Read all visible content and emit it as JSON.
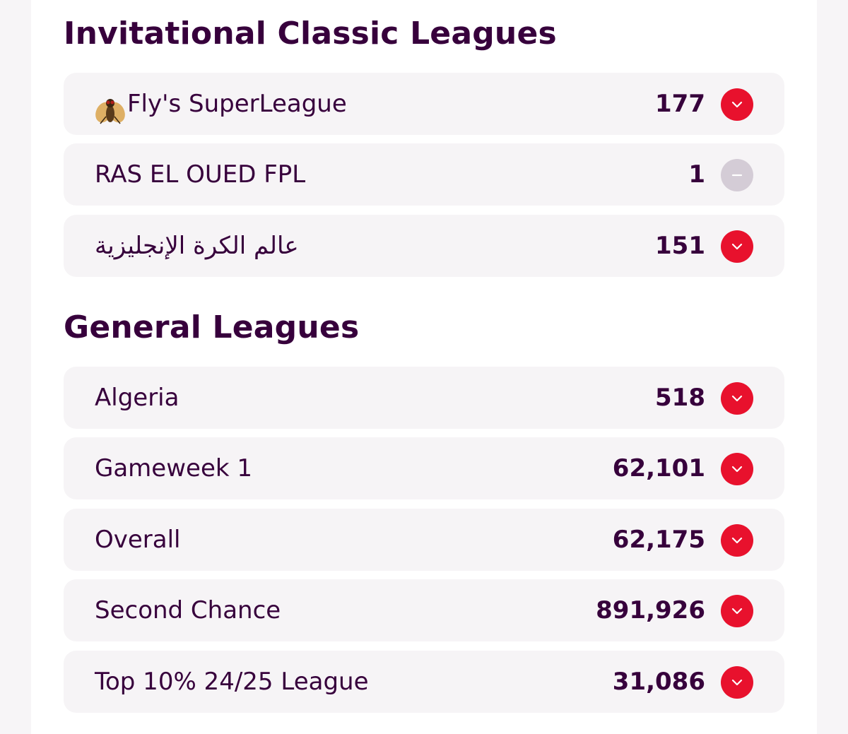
{
  "invitational": {
    "title": "Invitational Classic Leagues",
    "leagues": [
      {
        "name": "Fly's SuperLeague",
        "rank": "177",
        "movement": "down",
        "icon": "fly-icon"
      },
      {
        "name": "RAS EL OUED FPL",
        "rank": "1",
        "movement": "same"
      },
      {
        "name": "عالم الكرة الإنجليزية",
        "rank": "151",
        "movement": "down"
      }
    ]
  },
  "general": {
    "title": "General Leagues",
    "leagues": [
      {
        "name": "Algeria",
        "rank": "518",
        "movement": "down"
      },
      {
        "name": "Gameweek 1",
        "rank": "62,101",
        "movement": "down"
      },
      {
        "name": "Overall",
        "rank": "62,175",
        "movement": "down"
      },
      {
        "name": "Second Chance",
        "rank": "891,926",
        "movement": "down"
      },
      {
        "name": "Top 10% 24/25 League",
        "rank": "31,086",
        "movement": "down"
      }
    ]
  },
  "colors": {
    "brand_purple": "#37003c",
    "rank_down": "#e8112d",
    "rank_same": "#d4ccd6"
  }
}
